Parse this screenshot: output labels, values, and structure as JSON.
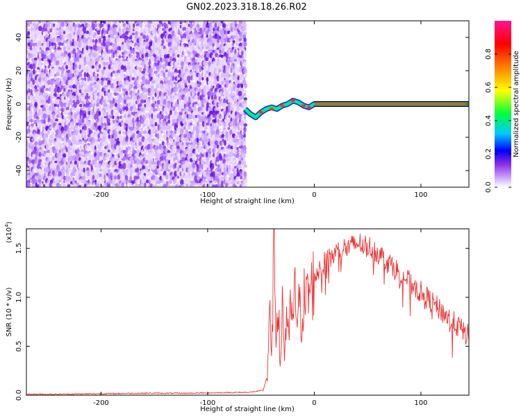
{
  "figure": {
    "title": "GN02.2023.318.18.26.R02"
  },
  "chart_data": [
    {
      "type": "heatmap",
      "title": "GN02.2023.318.18.26.R02",
      "xlabel": "Height of straight line (km)",
      "ylabel": "Frequency (Hz)",
      "xlim": [
        -270,
        145
      ],
      "ylim": [
        -50,
        50
      ],
      "x_ticks": [
        -200,
        -100,
        0,
        100
      ],
      "x_tick_labels": [
        "-200",
        "-100",
        "0",
        "100"
      ],
      "y_ticks": [
        -40,
        -20,
        0,
        20,
        40
      ],
      "y_tick_labels": [
        "-40",
        "-20",
        "0",
        "20",
        "40"
      ],
      "colorbar": {
        "label": "Normalized spectral amplitude",
        "range": [
          0.0,
          1.0
        ],
        "ticks": [
          0.0,
          0.2,
          0.4,
          0.6,
          0.8
        ],
        "tick_labels": [
          "0.0",
          "0.2",
          "0.4",
          "0.6",
          "0.8"
        ],
        "colormap": [
          "#ffffff",
          "#c9a0ff",
          "#8a2be2",
          "#0000ff",
          "#00c8ff",
          "#00ff40",
          "#ffff00",
          "#ff8000",
          "#ff0000",
          "#ff1493"
        ]
      },
      "regions": [
        {
          "name": "noise",
          "x_range": [
            -270,
            -65
          ],
          "y_range": [
            -50,
            50
          ],
          "amplitude": 0.1
        },
        {
          "name": "signal-onset",
          "x_range": [
            -65,
            0
          ],
          "y_range": [
            -10,
            5
          ],
          "amplitude": 0.6
        },
        {
          "name": "carrier-line",
          "x_range": [
            0,
            145
          ],
          "y_center": 0,
          "amplitude": 1.0
        }
      ],
      "signal_track": {
        "x": [
          -65,
          -60,
          -55,
          -50,
          -45,
          -40,
          -35,
          -30,
          -25,
          -20,
          -15,
          -10,
          -5,
          0,
          20,
          60,
          100,
          145
        ],
        "freq": [
          -3,
          -6,
          -8,
          -5,
          -3,
          -2,
          -3,
          -1,
          0,
          2,
          1,
          -1,
          -2,
          0,
          0,
          0,
          0,
          0
        ]
      }
    },
    {
      "type": "line",
      "xlabel": "Height of straight line (km)",
      "ylabel": "SNR (10 * v/v)",
      "y_multiplier": "(x10",
      "y_multiplier_exp": "4",
      "y_multiplier_close": ")",
      "xlim": [
        -270,
        145
      ],
      "ylim": [
        0,
        1.7
      ],
      "x_ticks": [
        -200,
        -100,
        0,
        100
      ],
      "x_tick_labels": [
        "-200",
        "-100",
        "0",
        "100"
      ],
      "y_ticks": [
        0.0,
        0.5,
        1.0,
        1.5
      ],
      "y_tick_labels": [
        "0.0",
        "0.5",
        "1.0",
        "1.5"
      ],
      "series": [
        {
          "color": "#ee3333",
          "x": [
            -270,
            -240,
            -200,
            -160,
            -120,
            -90,
            -60,
            -48,
            -44,
            -42,
            -40,
            -38,
            -36,
            -34,
            -32,
            -30,
            -28,
            -26,
            -24,
            -22,
            -20,
            -18,
            -16,
            -14,
            -12,
            -10,
            -8,
            -5,
            -2,
            0,
            5,
            10,
            15,
            20,
            25,
            30,
            35,
            40,
            45,
            50,
            55,
            60,
            65,
            70,
            75,
            80,
            85,
            90,
            95,
            100,
            105,
            110,
            115,
            120,
            125,
            130,
            135,
            140,
            145
          ],
          "values": [
            0.01,
            0.01,
            0.015,
            0.02,
            0.02,
            0.025,
            0.03,
            0.05,
            0.2,
            0.9,
            0.3,
            1.6,
            0.6,
            1.1,
            0.2,
            1.0,
            0.4,
            0.85,
            0.5,
            0.95,
            0.7,
            1.05,
            0.8,
            0.9,
            0.75,
            1.0,
            0.95,
            1.05,
            1.1,
            1.2,
            1.3,
            1.35,
            1.4,
            1.45,
            1.5,
            1.5,
            1.52,
            1.55,
            1.55,
            1.52,
            1.5,
            1.45,
            1.4,
            1.35,
            1.3,
            1.25,
            1.2,
            1.15,
            1.1,
            1.05,
            1.0,
            0.95,
            0.9,
            0.85,
            0.8,
            0.75,
            0.7,
            0.65,
            0.6
          ]
        }
      ]
    }
  ]
}
